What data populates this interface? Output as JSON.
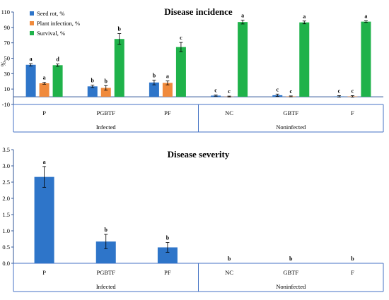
{
  "colors": {
    "seed_rot": "#2e75c9",
    "plant_infection": "#f08a3c",
    "survival": "#1fb24a",
    "axis": "#2f5597"
  },
  "chart_data": [
    {
      "type": "bar",
      "title": "Disease incidence",
      "ylabel": "%",
      "ylim": [
        -10,
        110
      ],
      "yticks": [
        -10,
        10,
        30,
        50,
        70,
        90,
        110
      ],
      "categories": [
        "P",
        "PGBTF",
        "PF",
        "NC",
        "GBTF",
        "F"
      ],
      "groups": [
        {
          "label": "Infected",
          "categories": [
            "P",
            "PGBTF",
            "PF"
          ]
        },
        {
          "label": "Noninfected",
          "categories": [
            "NC",
            "GBTF",
            "F"
          ]
        }
      ],
      "legend_position": "top-left",
      "series": [
        {
          "name": "Seed rot, %",
          "color": "#2e75c9",
          "values": [
            41.5,
            13.5,
            18.5,
            1.5,
            2.0,
            0.5
          ],
          "errors": [
            1.5,
            1.5,
            3.0,
            0.7,
            1.5,
            1.0
          ],
          "letters": [
            "a",
            "b",
            "b",
            "c",
            "c",
            "c"
          ]
        },
        {
          "name": "Plant infection, %",
          "color": "#f08a3c",
          "values": [
            17.5,
            11.5,
            18.0,
            0.3,
            0.5,
            0.5
          ],
          "errors": [
            1.2,
            3.0,
            2.5,
            0.6,
            0.6,
            1.0
          ],
          "letters": [
            "a",
            "b",
            "a",
            "c",
            "c",
            "c"
          ]
        },
        {
          "name": "Survival, %",
          "color": "#1fb24a",
          "values": [
            41.0,
            75.0,
            64.5,
            97.0,
            96.5,
            97.5
          ],
          "errors": [
            1.5,
            7.0,
            6.0,
            2.5,
            1.8,
            1.0
          ],
          "letters": [
            "d",
            "b",
            "c",
            "a",
            "a",
            "a"
          ]
        }
      ]
    },
    {
      "type": "bar",
      "title": "Disease severity",
      "ylabel": "",
      "ylim": [
        0,
        3.5
      ],
      "yticks": [
        0.0,
        0.5,
        1.0,
        1.5,
        2.0,
        2.5,
        3.0,
        3.5
      ],
      "categories": [
        "P",
        "PGBTF",
        "PF",
        "NC",
        "GBTF",
        "F"
      ],
      "groups": [
        {
          "label": "Infected",
          "categories": [
            "P",
            "PGBTF",
            "PF"
          ]
        },
        {
          "label": "Noninfected",
          "categories": [
            "NC",
            "GBTF",
            "F"
          ]
        }
      ],
      "series": [
        {
          "name": "",
          "color": "#2e75c9",
          "values": [
            2.66,
            0.67,
            0.49,
            0,
            0,
            0
          ],
          "errors": [
            0.32,
            0.22,
            0.15,
            0,
            0,
            0
          ],
          "letters": [
            "a",
            "b",
            "b",
            "b",
            "b",
            "b"
          ]
        }
      ]
    }
  ]
}
